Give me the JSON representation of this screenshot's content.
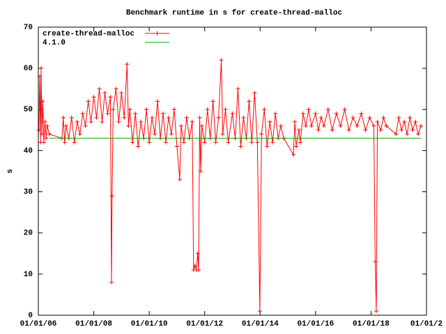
{
  "chart_data": {
    "type": "line",
    "title": "Benchmark runtime in s for create-thread-malloc",
    "y_label": "s",
    "xlim": [
      2006,
      2020
    ],
    "xticks": [
      {
        "value": 2006,
        "label": "01/01/06"
      },
      {
        "value": 2008,
        "label": "01/01/08"
      },
      {
        "value": 2010,
        "label": "01/01/10"
      },
      {
        "value": 2012,
        "label": "01/01/12"
      },
      {
        "value": 2014,
        "label": "01/01/14"
      },
      {
        "value": 2016,
        "label": "01/01/16"
      },
      {
        "value": 2018,
        "label": "01/01/18"
      },
      {
        "value": 2020,
        "label": "01/01/2"
      }
    ],
    "ylim": [
      0,
      70
    ],
    "yticks": [
      0,
      10,
      20,
      30,
      40,
      50,
      60,
      70
    ],
    "grid": false,
    "legend": "top-left",
    "series": [
      {
        "name": "create-thread-malloc",
        "color": "#ff0000",
        "markers": true,
        "x": [
          2006.02,
          2006.05,
          2006.08,
          2006.1,
          2006.13,
          2006.16,
          2006.2,
          2006.24,
          2006.28,
          2006.32,
          2006.4,
          2006.85,
          2006.9,
          2006.95,
          2007.0,
          2007.1,
          2007.2,
          2007.3,
          2007.4,
          2007.5,
          2007.6,
          2007.7,
          2007.8,
          2007.9,
          2008.0,
          2008.1,
          2008.2,
          2008.3,
          2008.4,
          2008.5,
          2008.6,
          2008.64,
          2008.66,
          2008.7,
          2008.8,
          2008.9,
          2009.0,
          2009.1,
          2009.2,
          2009.25,
          2009.3,
          2009.4,
          2009.5,
          2009.6,
          2009.7,
          2009.8,
          2009.9,
          2010.0,
          2010.1,
          2010.2,
          2010.3,
          2010.4,
          2010.5,
          2010.6,
          2010.7,
          2010.8,
          2010.9,
          2011.0,
          2011.1,
          2011.15,
          2011.25,
          2011.35,
          2011.45,
          2011.55,
          2011.6,
          2011.65,
          2011.7,
          2011.75,
          2011.78,
          2011.82,
          2011.86,
          2011.9,
          2012.0,
          2012.1,
          2012.2,
          2012.3,
          2012.4,
          2012.5,
          2012.6,
          2012.65,
          2012.75,
          2012.85,
          2013.0,
          2013.1,
          2013.2,
          2013.3,
          2013.4,
          2013.5,
          2013.6,
          2013.7,
          2013.8,
          2013.9,
          2013.99,
          2014.05,
          2014.15,
          2014.25,
          2014.35,
          2014.45,
          2014.55,
          2014.65,
          2014.75,
          2014.85,
          2015.2,
          2015.25,
          2015.3,
          2015.4,
          2015.45,
          2015.55,
          2015.65,
          2015.75,
          2015.85,
          2016.0,
          2016.1,
          2016.2,
          2016.3,
          2016.45,
          2016.6,
          2016.75,
          2016.9,
          2017.05,
          2017.2,
          2017.35,
          2017.5,
          2017.65,
          2017.8,
          2017.95,
          2018.1,
          2018.15,
          2018.19,
          2018.23,
          2018.35,
          2018.45,
          2018.55,
          2018.9,
          2019.0,
          2019.1,
          2019.2,
          2019.3,
          2019.4,
          2019.5,
          2019.6,
          2019.7,
          2019.8
        ],
        "values": [
          45,
          58,
          42,
          60,
          44,
          52,
          42,
          47,
          43,
          46,
          44,
          43,
          48,
          42,
          46,
          43,
          48,
          42,
          47,
          44,
          49,
          46,
          52,
          47,
          53,
          48,
          55,
          47,
          54,
          49,
          53,
          8,
          29,
          50,
          55,
          47,
          54,
          48,
          61,
          46,
          50,
          42,
          49,
          41,
          47,
          43,
          50,
          42,
          48,
          44,
          52,
          43,
          49,
          42,
          48,
          44,
          50,
          41,
          33,
          46,
          42,
          48,
          43,
          47,
          11,
          12,
          11,
          15,
          11,
          48,
          35,
          46,
          42,
          50,
          43,
          52,
          42,
          48,
          62,
          44,
          50,
          42,
          49,
          43,
          55,
          41,
          48,
          43,
          52,
          42,
          54,
          42,
          1,
          44,
          50,
          41,
          47,
          42,
          49,
          43,
          46,
          43,
          39,
          47,
          41,
          45,
          42,
          49,
          46,
          50,
          46,
          49,
          45,
          48,
          46,
          50,
          45,
          49,
          46,
          50,
          45,
          48,
          46,
          49,
          45,
          48,
          46,
          13,
          1,
          47,
          45,
          48,
          46,
          44,
          48,
          45,
          47,
          44,
          48,
          45,
          47,
          44,
          46
        ]
      },
      {
        "name": "4.1.0",
        "color": "#00a000",
        "markers": false,
        "x": [
          2006.4,
          2019.8
        ],
        "values": [
          43,
          43
        ]
      }
    ]
  }
}
